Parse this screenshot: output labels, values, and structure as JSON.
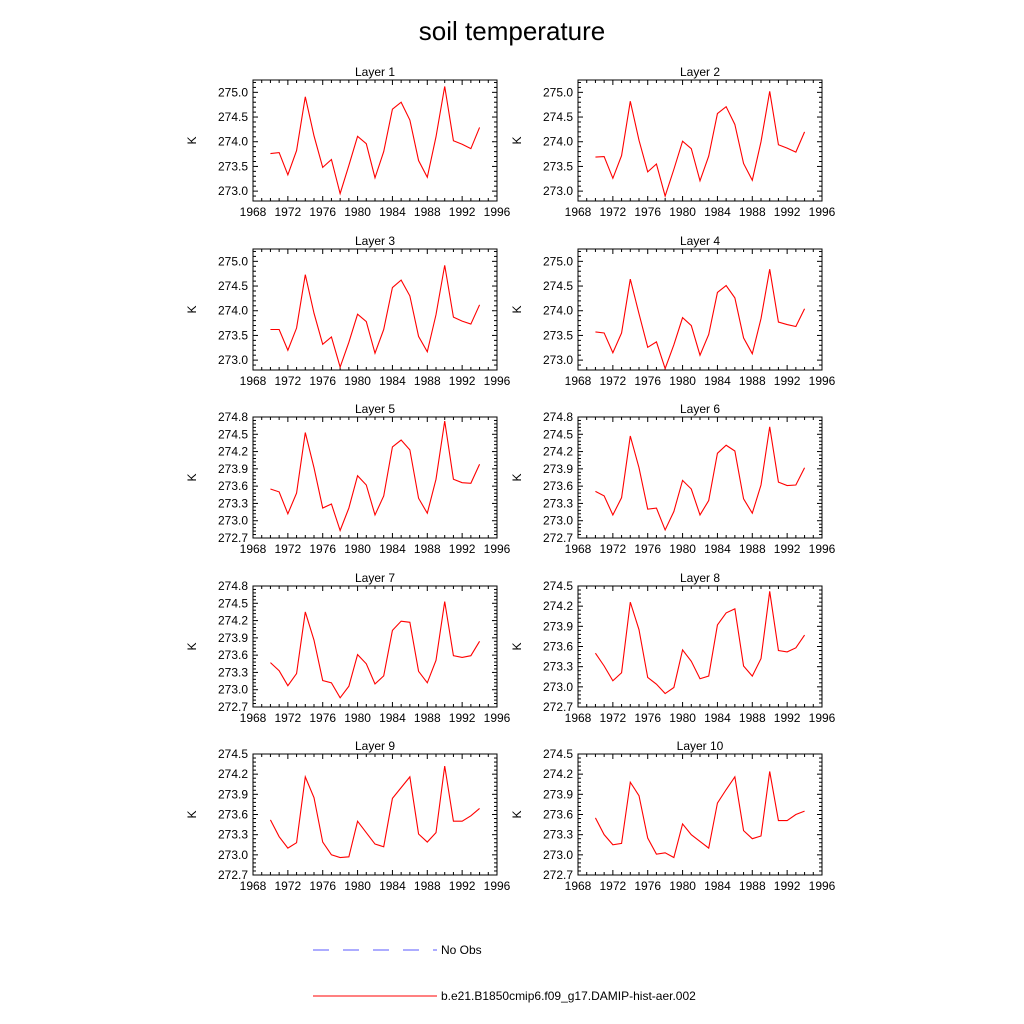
{
  "figure": {
    "title": "soil temperature"
  },
  "colors": {
    "model": "#ff0000",
    "obs": "#5a5aff"
  },
  "legend": {
    "obs_label": "No Obs",
    "model_label": "b.e21.B1850cmip6.f09_g17.DAMIP-hist-aer.002"
  },
  "chart_data": [
    {
      "type": "line",
      "title": "Layer 1",
      "ylabel": "K",
      "xlim": [
        1968,
        1996
      ],
      "xticks": [
        1968,
        1972,
        1976,
        1980,
        1984,
        1988,
        1992,
        1996
      ],
      "ylim": [
        272.8,
        275.25
      ],
      "yticks": [
        "273.0",
        "273.5",
        "274.0",
        "274.5",
        "275.0"
      ],
      "x": [
        1970,
        1971,
        1972,
        1973,
        1974,
        1975,
        1976,
        1977,
        1978,
        1979,
        1980,
        1981,
        1982,
        1983,
        1984,
        1985,
        1986,
        1987,
        1988,
        1989,
        1990,
        1991,
        1992,
        1993,
        1994
      ],
      "series": [
        {
          "name": "b.e21.B1850cmip6.f09_g17.DAMIP-hist-aer.002",
          "values": [
            273.76,
            273.78,
            273.33,
            273.82,
            274.91,
            274.12,
            273.48,
            273.64,
            272.95,
            273.52,
            274.11,
            273.96,
            273.27,
            273.8,
            274.66,
            274.8,
            274.44,
            273.62,
            273.28,
            274.1,
            275.12,
            274.02,
            273.95,
            273.86,
            274.29
          ]
        }
      ]
    },
    {
      "type": "line",
      "title": "Layer 2",
      "ylabel": "K",
      "xlim": [
        1968,
        1996
      ],
      "xticks": [
        1968,
        1972,
        1976,
        1980,
        1984,
        1988,
        1992,
        1996
      ],
      "ylim": [
        272.8,
        275.25
      ],
      "yticks": [
        "273.0",
        "273.5",
        "274.0",
        "274.5",
        "275.0"
      ],
      "x": [
        1970,
        1971,
        1972,
        1973,
        1974,
        1975,
        1976,
        1977,
        1978,
        1979,
        1980,
        1981,
        1982,
        1983,
        1984,
        1985,
        1986,
        1987,
        1988,
        1989,
        1990,
        1991,
        1992,
        1993,
        1994
      ],
      "series": [
        {
          "name": "b.e21.B1850cmip6.f09_g17.DAMIP-hist-aer.002",
          "values": [
            273.69,
            273.7,
            273.26,
            273.72,
            274.82,
            274.03,
            273.39,
            273.55,
            272.9,
            273.44,
            274.01,
            273.86,
            273.21,
            273.71,
            274.57,
            274.71,
            274.35,
            273.56,
            273.22,
            274.0,
            275.02,
            273.94,
            273.87,
            273.79,
            274.2
          ]
        }
      ]
    },
    {
      "type": "line",
      "title": "Layer 3",
      "ylabel": "K",
      "xlim": [
        1968,
        1996
      ],
      "xticks": [
        1968,
        1972,
        1976,
        1980,
        1984,
        1988,
        1992,
        1996
      ],
      "ylim": [
        272.8,
        275.25
      ],
      "yticks": [
        "273.0",
        "273.5",
        "274.0",
        "274.5",
        "275.0"
      ],
      "x": [
        1970,
        1971,
        1972,
        1973,
        1974,
        1975,
        1976,
        1977,
        1978,
        1979,
        1980,
        1981,
        1982,
        1983,
        1984,
        1985,
        1986,
        1987,
        1988,
        1989,
        1990,
        1991,
        1992,
        1993,
        1994
      ],
      "series": [
        {
          "name": "b.e21.B1850cmip6.f09_g17.DAMIP-hist-aer.002",
          "values": [
            273.62,
            273.62,
            273.2,
            273.65,
            274.73,
            273.95,
            273.32,
            273.47,
            272.86,
            273.36,
            273.93,
            273.78,
            273.14,
            273.62,
            274.47,
            274.62,
            274.3,
            273.48,
            273.17,
            273.92,
            274.92,
            273.87,
            273.79,
            273.73,
            274.12
          ]
        }
      ]
    },
    {
      "type": "line",
      "title": "Layer 4",
      "ylabel": "K",
      "xlim": [
        1968,
        1996
      ],
      "xticks": [
        1968,
        1972,
        1976,
        1980,
        1984,
        1988,
        1992,
        1996
      ],
      "ylim": [
        272.8,
        275.25
      ],
      "yticks": [
        "273.0",
        "273.5",
        "274.0",
        "274.5",
        "275.0"
      ],
      "x": [
        1970,
        1971,
        1972,
        1973,
        1974,
        1975,
        1976,
        1977,
        1978,
        1979,
        1980,
        1981,
        1982,
        1983,
        1984,
        1985,
        1986,
        1987,
        1988,
        1989,
        1990,
        1991,
        1992,
        1993,
        1994
      ],
      "series": [
        {
          "name": "b.e21.B1850cmip6.f09_g17.DAMIP-hist-aer.002",
          "values": [
            273.57,
            273.55,
            273.15,
            273.55,
            274.64,
            273.94,
            273.26,
            273.37,
            272.83,
            273.31,
            273.86,
            273.7,
            273.1,
            273.52,
            274.37,
            274.51,
            274.26,
            273.45,
            273.13,
            273.84,
            274.84,
            273.77,
            273.72,
            273.68,
            274.04
          ]
        }
      ]
    },
    {
      "type": "line",
      "title": "Layer 5",
      "ylabel": "K",
      "xlim": [
        1968,
        1996
      ],
      "xticks": [
        1968,
        1972,
        1976,
        1980,
        1984,
        1988,
        1992,
        1996
      ],
      "ylim": [
        272.7,
        274.8
      ],
      "yticks": [
        "272.7",
        "273.0",
        "273.3",
        "273.6",
        "273.9",
        "274.2",
        "274.5",
        "274.8"
      ],
      "x": [
        1970,
        1971,
        1972,
        1973,
        1974,
        1975,
        1976,
        1977,
        1978,
        1979,
        1980,
        1981,
        1982,
        1983,
        1984,
        1985,
        1986,
        1987,
        1988,
        1989,
        1990,
        1991,
        1992,
        1993,
        1994
      ],
      "series": [
        {
          "name": "b.e21.B1850cmip6.f09_g17.DAMIP-hist-aer.002",
          "values": [
            273.55,
            273.5,
            273.12,
            273.48,
            274.53,
            273.92,
            273.22,
            273.29,
            272.83,
            273.22,
            273.78,
            273.62,
            273.1,
            273.43,
            274.28,
            274.4,
            274.23,
            273.39,
            273.13,
            273.72,
            274.73,
            273.72,
            273.66,
            273.65,
            273.98
          ]
        }
      ]
    },
    {
      "type": "line",
      "title": "Layer 6",
      "ylabel": "K",
      "xlim": [
        1968,
        1996
      ],
      "xticks": [
        1968,
        1972,
        1976,
        1980,
        1984,
        1988,
        1992,
        1996
      ],
      "ylim": [
        272.7,
        274.8
      ],
      "yticks": [
        "272.7",
        "273.0",
        "273.3",
        "273.6",
        "273.9",
        "274.2",
        "274.5",
        "274.8"
      ],
      "x": [
        1970,
        1971,
        1972,
        1973,
        1974,
        1975,
        1976,
        1977,
        1978,
        1979,
        1980,
        1981,
        1982,
        1983,
        1984,
        1985,
        1986,
        1987,
        1988,
        1989,
        1990,
        1991,
        1992,
        1993,
        1994
      ],
      "series": [
        {
          "name": "b.e21.B1850cmip6.f09_g17.DAMIP-hist-aer.002",
          "values": [
            273.51,
            273.43,
            273.1,
            273.4,
            274.47,
            273.92,
            273.2,
            273.22,
            272.84,
            273.16,
            273.7,
            273.55,
            273.1,
            273.35,
            274.17,
            274.31,
            274.21,
            273.38,
            273.13,
            273.62,
            274.63,
            273.67,
            273.61,
            273.62,
            273.92
          ]
        }
      ]
    },
    {
      "type": "line",
      "title": "Layer 7",
      "ylabel": "K",
      "xlim": [
        1968,
        1996
      ],
      "xticks": [
        1968,
        1972,
        1976,
        1980,
        1984,
        1988,
        1992,
        1996
      ],
      "ylim": [
        272.7,
        274.8
      ],
      "yticks": [
        "272.7",
        "273.0",
        "273.3",
        "273.6",
        "273.9",
        "274.2",
        "274.5",
        "274.8"
      ],
      "x": [
        1970,
        1971,
        1972,
        1973,
        1974,
        1975,
        1976,
        1977,
        1978,
        1979,
        1980,
        1981,
        1982,
        1983,
        1984,
        1985,
        1986,
        1987,
        1988,
        1989,
        1990,
        1991,
        1992,
        1993,
        1994
      ],
      "series": [
        {
          "name": "b.e21.B1850cmip6.f09_g17.DAMIP-hist-aer.002",
          "values": [
            273.47,
            273.33,
            273.07,
            273.28,
            274.35,
            273.86,
            273.16,
            273.12,
            272.86,
            273.06,
            273.61,
            273.45,
            273.1,
            273.24,
            274.03,
            274.19,
            274.17,
            273.32,
            273.12,
            273.51,
            274.53,
            273.59,
            273.56,
            273.59,
            273.84
          ]
        }
      ]
    },
    {
      "type": "line",
      "title": "Layer 8",
      "ylabel": "K",
      "xlim": [
        1968,
        1996
      ],
      "xticks": [
        1968,
        1972,
        1976,
        1980,
        1984,
        1988,
        1992,
        1996
      ],
      "ylim": [
        272.7,
        274.5
      ],
      "yticks": [
        "272.7",
        "273.0",
        "273.3",
        "273.6",
        "273.9",
        "274.2",
        "274.5"
      ],
      "x": [
        1970,
        1971,
        1972,
        1973,
        1974,
        1975,
        1976,
        1977,
        1978,
        1979,
        1980,
        1981,
        1982,
        1983,
        1984,
        1985,
        1986,
        1987,
        1988,
        1989,
        1990,
        1991,
        1992,
        1993,
        1994
      ],
      "series": [
        {
          "name": "b.e21.B1850cmip6.f09_g17.DAMIP-hist-aer.002",
          "values": [
            273.5,
            273.31,
            273.09,
            273.21,
            274.26,
            273.85,
            273.14,
            273.04,
            272.9,
            272.99,
            273.55,
            273.38,
            273.12,
            273.16,
            273.92,
            274.1,
            274.16,
            273.31,
            273.16,
            273.42,
            274.42,
            273.54,
            273.52,
            273.58,
            273.77
          ]
        }
      ]
    },
    {
      "type": "line",
      "title": "Layer 9",
      "ylabel": "K",
      "xlim": [
        1968,
        1996
      ],
      "xticks": [
        1968,
        1972,
        1976,
        1980,
        1984,
        1988,
        1992,
        1996
      ],
      "ylim": [
        272.7,
        274.5
      ],
      "yticks": [
        "272.7",
        "273.0",
        "273.3",
        "273.6",
        "273.9",
        "274.2",
        "274.5"
      ],
      "x": [
        1970,
        1971,
        1972,
        1973,
        1974,
        1975,
        1976,
        1977,
        1978,
        1979,
        1980,
        1981,
        1982,
        1983,
        1984,
        1985,
        1986,
        1987,
        1988,
        1989,
        1990,
        1991,
        1992,
        1993,
        1994
      ],
      "series": [
        {
          "name": "b.e21.B1850cmip6.f09_g17.DAMIP-hist-aer.002",
          "values": [
            273.52,
            273.27,
            273.1,
            273.18,
            274.16,
            273.85,
            273.19,
            273.0,
            272.96,
            272.97,
            273.5,
            273.33,
            273.16,
            273.12,
            273.84,
            274.0,
            274.16,
            273.31,
            273.19,
            273.33,
            274.32,
            273.5,
            273.5,
            273.58,
            273.69
          ]
        }
      ]
    },
    {
      "type": "line",
      "title": "Layer 10",
      "ylabel": "K",
      "xlim": [
        1968,
        1996
      ],
      "xticks": [
        1968,
        1972,
        1976,
        1980,
        1984,
        1988,
        1992,
        1996
      ],
      "ylim": [
        272.7,
        274.5
      ],
      "yticks": [
        "272.7",
        "273.0",
        "273.3",
        "273.6",
        "273.9",
        "274.2",
        "274.5"
      ],
      "x": [
        1970,
        1971,
        1972,
        1973,
        1974,
        1975,
        1976,
        1977,
        1978,
        1979,
        1980,
        1981,
        1982,
        1983,
        1984,
        1985,
        1986,
        1987,
        1988,
        1989,
        1990,
        1991,
        1992,
        1993,
        1994
      ],
      "series": [
        {
          "name": "b.e21.B1850cmip6.f09_g17.DAMIP-hist-aer.002",
          "values": [
            273.55,
            273.3,
            273.15,
            273.17,
            274.08,
            273.88,
            273.25,
            273.01,
            273.03,
            272.96,
            273.46,
            273.3,
            273.2,
            273.1,
            273.77,
            273.97,
            274.16,
            273.36,
            273.24,
            273.28,
            274.24,
            273.51,
            273.51,
            273.6,
            273.65
          ]
        }
      ]
    }
  ]
}
